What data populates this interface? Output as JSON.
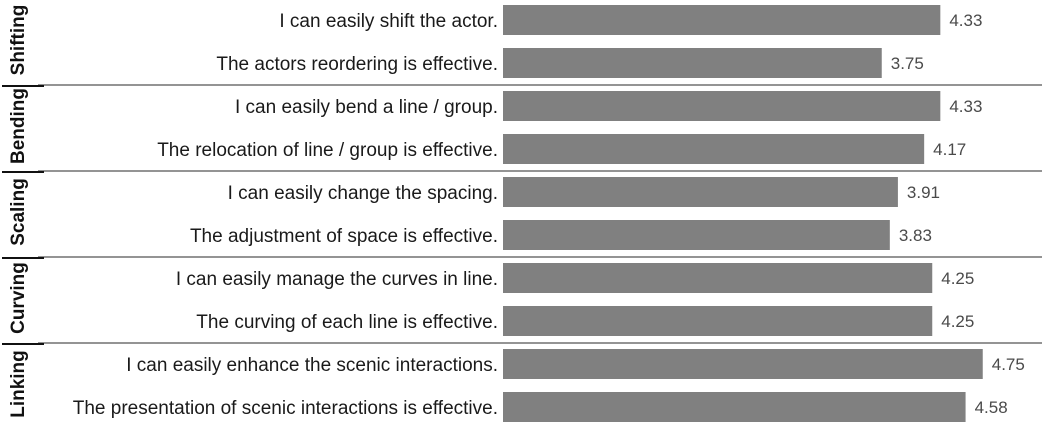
{
  "chart_data": {
    "type": "bar",
    "orientation": "horizontal",
    "bar_color": "#808080",
    "xlim": [
      0,
      5
    ],
    "grid": false,
    "groups": [
      {
        "name": "Shifting",
        "items": [
          {
            "label": "I can easily shift the actor.",
            "value": 4.33
          },
          {
            "label": "The actors reordering is effective.",
            "value": 3.75
          }
        ]
      },
      {
        "name": "Bending",
        "items": [
          {
            "label": "I can easily bend a line / group.",
            "value": 4.33
          },
          {
            "label": "The relocation of line / group is effective.",
            "value": 4.17
          }
        ]
      },
      {
        "name": "Scaling",
        "items": [
          {
            "label": "I can easily change the spacing.",
            "value": 3.91
          },
          {
            "label": "The adjustment of space is effective.",
            "value": 3.83
          }
        ]
      },
      {
        "name": "Curving",
        "items": [
          {
            "label": "I can easily manage the curves in line.",
            "value": 4.25
          },
          {
            "label": "The curving of each line is effective.",
            "value": 4.25
          }
        ]
      },
      {
        "name": "Linking",
        "items": [
          {
            "label": "I can easily enhance the scenic interactions.",
            "value": 4.75
          },
          {
            "label": "The presentation of scenic interactions is effective.",
            "value": 4.58
          }
        ]
      }
    ]
  }
}
